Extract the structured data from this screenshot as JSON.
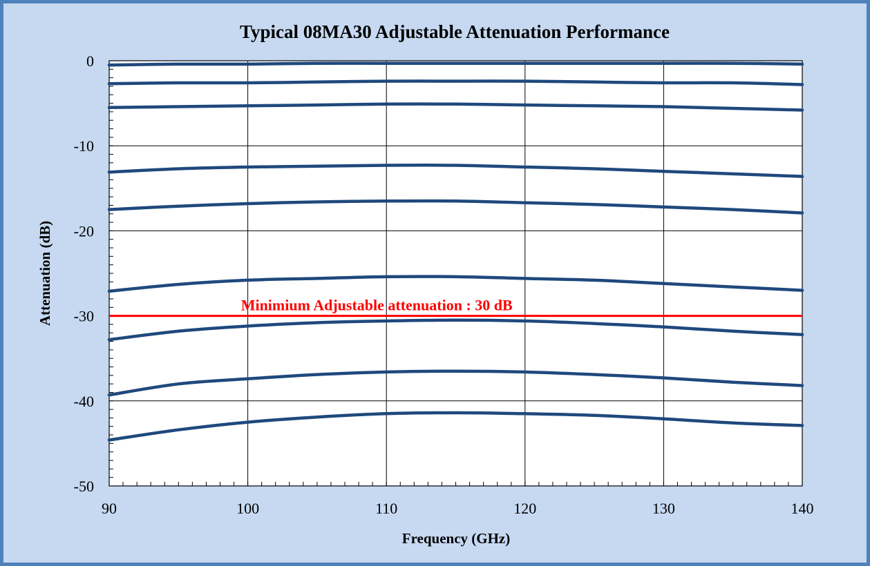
{
  "colors": {
    "background": "#c6d9f1",
    "border": "#4f81bd",
    "plot_background": "#ffffff",
    "series": "#1f497d",
    "reference_line": "#ff0000",
    "grid": "#000000"
  },
  "chart_data": {
    "type": "line",
    "title": "Typical 08MA30 Adjustable Attenuation Performance",
    "xlabel": "Frequency (GHz)",
    "ylabel": "Attenuation (dB)",
    "xlim": [
      90,
      140
    ],
    "ylim": [
      -50,
      0
    ],
    "xticks": [
      90,
      100,
      110,
      120,
      130,
      140
    ],
    "xtick_labels": [
      "90",
      "100",
      "110",
      "120",
      "130",
      "140"
    ],
    "yticks": [
      0,
      -10,
      -20,
      -30,
      -40,
      -50
    ],
    "ytick_labels": [
      "0",
      "-10",
      "-20",
      "-30",
      "-40",
      "-50"
    ],
    "grid": true,
    "legend": "none",
    "x": [
      90,
      95,
      100,
      105,
      110,
      115,
      120,
      125,
      130,
      135,
      140
    ],
    "series": [
      {
        "values": [
          -0.5,
          -0.4,
          -0.4,
          -0.3,
          -0.3,
          -0.3,
          -0.3,
          -0.3,
          -0.3,
          -0.3,
          -0.4
        ]
      },
      {
        "values": [
          -2.7,
          -2.6,
          -2.6,
          -2.5,
          -2.4,
          -2.4,
          -2.4,
          -2.5,
          -2.6,
          -2.6,
          -2.8
        ]
      },
      {
        "values": [
          -5.5,
          -5.4,
          -5.3,
          -5.2,
          -5.1,
          -5.1,
          -5.2,
          -5.3,
          -5.4,
          -5.6,
          -5.8
        ]
      },
      {
        "values": [
          -13.1,
          -12.7,
          -12.5,
          -12.4,
          -12.3,
          -12.3,
          -12.5,
          -12.7,
          -13.0,
          -13.3,
          -13.6
        ]
      },
      {
        "values": [
          -17.5,
          -17.1,
          -16.8,
          -16.6,
          -16.5,
          -16.5,
          -16.7,
          -16.9,
          -17.2,
          -17.5,
          -17.9
        ]
      },
      {
        "values": [
          -27.1,
          -26.3,
          -25.8,
          -25.6,
          -25.4,
          -25.4,
          -25.6,
          -25.8,
          -26.2,
          -26.6,
          -27.0
        ]
      },
      {
        "values": [
          -32.8,
          -31.8,
          -31.2,
          -30.8,
          -30.6,
          -30.5,
          -30.6,
          -30.9,
          -31.3,
          -31.8,
          -32.2
        ]
      },
      {
        "values": [
          -39.3,
          -38.0,
          -37.4,
          -36.9,
          -36.6,
          -36.5,
          -36.6,
          -36.9,
          -37.3,
          -37.8,
          -38.2
        ]
      },
      {
        "values": [
          -44.6,
          -43.4,
          -42.5,
          -41.9,
          -41.5,
          -41.4,
          -41.5,
          -41.7,
          -42.1,
          -42.6,
          -42.9
        ]
      }
    ],
    "reference_line": {
      "y": -30,
      "label": "Minimium Adjustable attenuation : 30 dB"
    }
  }
}
